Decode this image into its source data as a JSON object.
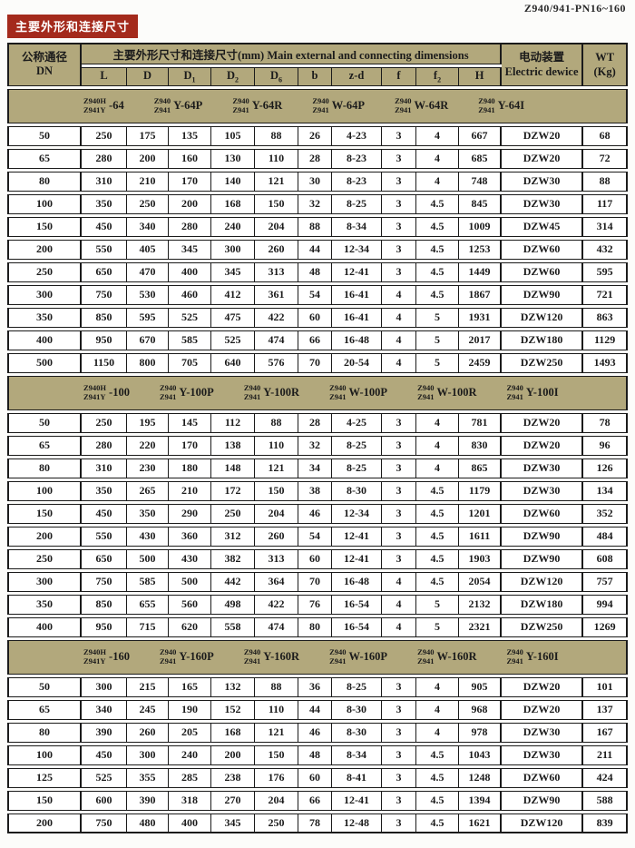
{
  "page": {
    "doc_code": "Z940/941-PN16~160",
    "banner": "主要外形和连接尺寸"
  },
  "colors": {
    "header_khaki": "#b2a87c",
    "banner_red": "#a42a1c",
    "border_black": "#1b1b1b"
  },
  "table": {
    "header": {
      "dn_line1": "公称通径",
      "dn_line2": "DN",
      "main_group": "主要外形尺寸和连接尺寸(mm) Main external and connecting dimensions",
      "cols": [
        {
          "b": "L",
          "s": ""
        },
        {
          "b": "D",
          "s": ""
        },
        {
          "b": "D",
          "s": "1"
        },
        {
          "b": "D",
          "s": "2"
        },
        {
          "b": "D",
          "s": "6"
        },
        {
          "b": "b",
          "s": ""
        },
        {
          "b": "z-d",
          "s": ""
        },
        {
          "b": "f",
          "s": ""
        },
        {
          "b": "f",
          "s": "2"
        },
        {
          "b": "H",
          "s": ""
        }
      ],
      "electric_line1": "电动装置",
      "electric_line2": "Electric dewice",
      "wt_line1": "WT",
      "wt_line2": "(Kg)"
    },
    "sections": [
      {
        "models": [
          {
            "top": "Z940H",
            "bottom": "Z941Y",
            "suffix": "-64"
          },
          {
            "top": "Z940",
            "bottom": "Z941",
            "suffix": "Y-64P"
          },
          {
            "top": "Z940",
            "bottom": "Z941",
            "suffix": "Y-64R"
          },
          {
            "top": "Z940",
            "bottom": "Z941",
            "suffix": "W-64P"
          },
          {
            "top": "Z940",
            "bottom": "Z941",
            "suffix": "W-64R"
          },
          {
            "top": "Z940",
            "bottom": "Z941",
            "suffix": "Y-64I"
          }
        ],
        "rows": [
          [
            "50",
            "250",
            "175",
            "135",
            "105",
            "88",
            "26",
            "4-23",
            "3",
            "4",
            "667",
            "DZW20",
            "68"
          ],
          [
            "65",
            "280",
            "200",
            "160",
            "130",
            "110",
            "28",
            "8-23",
            "3",
            "4",
            "685",
            "DZW20",
            "72"
          ],
          [
            "80",
            "310",
            "210",
            "170",
            "140",
            "121",
            "30",
            "8-23",
            "3",
            "4",
            "748",
            "DZW30",
            "88"
          ],
          [
            "100",
            "350",
            "250",
            "200",
            "168",
            "150",
            "32",
            "8-25",
            "3",
            "4.5",
            "845",
            "DZW30",
            "117"
          ],
          [
            "150",
            "450",
            "340",
            "280",
            "240",
            "204",
            "88",
            "8-34",
            "3",
            "4.5",
            "1009",
            "DZW45",
            "314"
          ],
          [
            "200",
            "550",
            "405",
            "345",
            "300",
            "260",
            "44",
            "12-34",
            "3",
            "4.5",
            "1253",
            "DZW60",
            "432"
          ],
          [
            "250",
            "650",
            "470",
            "400",
            "345",
            "313",
            "48",
            "12-41",
            "3",
            "4.5",
            "1449",
            "DZW60",
            "595"
          ],
          [
            "300",
            "750",
            "530",
            "460",
            "412",
            "361",
            "54",
            "16-41",
            "4",
            "4.5",
            "1867",
            "DZW90",
            "721"
          ],
          [
            "350",
            "850",
            "595",
            "525",
            "475",
            "422",
            "60",
            "16-41",
            "4",
            "5",
            "1931",
            "DZW120",
            "863"
          ],
          [
            "400",
            "950",
            "670",
            "585",
            "525",
            "474",
            "66",
            "16-48",
            "4",
            "5",
            "2017",
            "DZW180",
            "1129"
          ],
          [
            "500",
            "1150",
            "800",
            "705",
            "640",
            "576",
            "70",
            "20-54",
            "4",
            "5",
            "2459",
            "DZW250",
            "1493"
          ]
        ]
      },
      {
        "models": [
          {
            "top": "Z940H",
            "bottom": "Z941Y",
            "suffix": "-100"
          },
          {
            "top": "Z940",
            "bottom": "Z941",
            "suffix": "Y-100P"
          },
          {
            "top": "Z940",
            "bottom": "Z941",
            "suffix": "Y-100R"
          },
          {
            "top": "Z940",
            "bottom": "Z941",
            "suffix": "W-100P"
          },
          {
            "top": "Z940",
            "bottom": "Z941",
            "suffix": "W-100R"
          },
          {
            "top": "Z940",
            "bottom": "Z941",
            "suffix": "Y-100I"
          }
        ],
        "rows": [
          [
            "50",
            "250",
            "195",
            "145",
            "112",
            "88",
            "28",
            "4-25",
            "3",
            "4",
            "781",
            "DZW20",
            "78"
          ],
          [
            "65",
            "280",
            "220",
            "170",
            "138",
            "110",
            "32",
            "8-25",
            "3",
            "4",
            "830",
            "DZW20",
            "96"
          ],
          [
            "80",
            "310",
            "230",
            "180",
            "148",
            "121",
            "34",
            "8-25",
            "3",
            "4",
            "865",
            "DZW30",
            "126"
          ],
          [
            "100",
            "350",
            "265",
            "210",
            "172",
            "150",
            "38",
            "8-30",
            "3",
            "4.5",
            "1179",
            "DZW30",
            "134"
          ],
          [
            "150",
            "450",
            "350",
            "290",
            "250",
            "204",
            "46",
            "12-34",
            "3",
            "4.5",
            "1201",
            "DZW60",
            "352"
          ],
          [
            "200",
            "550",
            "430",
            "360",
            "312",
            "260",
            "54",
            "12-41",
            "3",
            "4.5",
            "1611",
            "DZW90",
            "484"
          ],
          [
            "250",
            "650",
            "500",
            "430",
            "382",
            "313",
            "60",
            "12-41",
            "3",
            "4.5",
            "1903",
            "DZW90",
            "608"
          ],
          [
            "300",
            "750",
            "585",
            "500",
            "442",
            "364",
            "70",
            "16-48",
            "4",
            "4.5",
            "2054",
            "DZW120",
            "757"
          ],
          [
            "350",
            "850",
            "655",
            "560",
            "498",
            "422",
            "76",
            "16-54",
            "4",
            "5",
            "2132",
            "DZW180",
            "994"
          ],
          [
            "400",
            "950",
            "715",
            "620",
            "558",
            "474",
            "80",
            "16-54",
            "4",
            "5",
            "2321",
            "DZW250",
            "1269"
          ]
        ]
      },
      {
        "models": [
          {
            "top": "Z940H",
            "bottom": "Z941Y",
            "suffix": "-160"
          },
          {
            "top": "Z940",
            "bottom": "Z941",
            "suffix": "Y-160P"
          },
          {
            "top": "Z940",
            "bottom": "Z941",
            "suffix": "Y-160R"
          },
          {
            "top": "Z940",
            "bottom": "Z941",
            "suffix": "W-160P"
          },
          {
            "top": "Z940",
            "bottom": "Z941",
            "suffix": "W-160R"
          },
          {
            "top": "Z940",
            "bottom": "Z941",
            "suffix": "Y-160I"
          }
        ],
        "rows": [
          [
            "50",
            "300",
            "215",
            "165",
            "132",
            "88",
            "36",
            "8-25",
            "3",
            "4",
            "905",
            "DZW20",
            "101"
          ],
          [
            "65",
            "340",
            "245",
            "190",
            "152",
            "110",
            "44",
            "8-30",
            "3",
            "4",
            "968",
            "DZW20",
            "137"
          ],
          [
            "80",
            "390",
            "260",
            "205",
            "168",
            "121",
            "46",
            "8-30",
            "3",
            "4",
            "978",
            "DZW30",
            "167"
          ],
          [
            "100",
            "450",
            "300",
            "240",
            "200",
            "150",
            "48",
            "8-34",
            "3",
            "4.5",
            "1043",
            "DZW30",
            "211"
          ],
          [
            "125",
            "525",
            "355",
            "285",
            "238",
            "176",
            "60",
            "8-41",
            "3",
            "4.5",
            "1248",
            "DZW60",
            "424"
          ],
          [
            "150",
            "600",
            "390",
            "318",
            "270",
            "204",
            "66",
            "12-41",
            "3",
            "4.5",
            "1394",
            "DZW90",
            "588"
          ],
          [
            "200",
            "750",
            "480",
            "400",
            "345",
            "250",
            "78",
            "12-48",
            "3",
            "4.5",
            "1621",
            "DZW120",
            "839"
          ]
        ]
      }
    ]
  }
}
